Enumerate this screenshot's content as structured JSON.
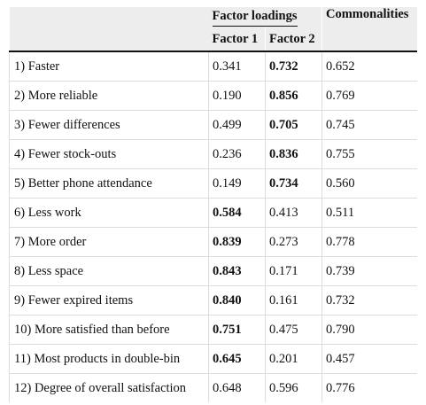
{
  "header": {
    "group_label": "Factor loadings",
    "commonalities_label": "Commonalities",
    "factor1_label": "Factor 1",
    "factor2_label": "Factor 2"
  },
  "rows": [
    {
      "item": "1) Faster",
      "f1": "0.341",
      "f2": "0.732",
      "comm": "0.652",
      "bold": "f2"
    },
    {
      "item": "2) More reliable",
      "f1": "0.190",
      "f2": "0.856",
      "comm": "0.769",
      "bold": "f2"
    },
    {
      "item": "3) Fewer differences",
      "f1": "0.499",
      "f2": "0.705",
      "comm": "0.745",
      "bold": "f2"
    },
    {
      "item": "4) Fewer stock-outs",
      "f1": "0.236",
      "f2": "0.836",
      "comm": "0.755",
      "bold": "f2"
    },
    {
      "item": "5) Better phone attendance",
      "f1": "0.149",
      "f2": "0.734",
      "comm": "0.560",
      "bold": "f2"
    },
    {
      "item": "6) Less work",
      "f1": "0.584",
      "f2": "0.413",
      "comm": "0.511",
      "bold": "f1"
    },
    {
      "item": "7) More order",
      "f1": "0.839",
      "f2": "0.273",
      "comm": "0.778",
      "bold": "f1"
    },
    {
      "item": "8) Less space",
      "f1": "0.843",
      "f2": "0.171",
      "comm": "0.739",
      "bold": "f1"
    },
    {
      "item": "9) Fewer expired items",
      "f1": "0.840",
      "f2": "0.161",
      "comm": "0.732",
      "bold": "f1"
    },
    {
      "item": "10) More satisfied than before",
      "f1": "0.751",
      "f2": "0.475",
      "comm": "0.790",
      "bold": "f1"
    },
    {
      "item": "11) Most products in double-bin",
      "f1": "0.645",
      "f2": "0.201",
      "comm": "0.457",
      "bold": "f1"
    },
    {
      "item": "12) Degree of overall satisfaction",
      "f1": "0.648",
      "f2": "0.596",
      "comm": "0.776",
      "bold": ""
    }
  ]
}
